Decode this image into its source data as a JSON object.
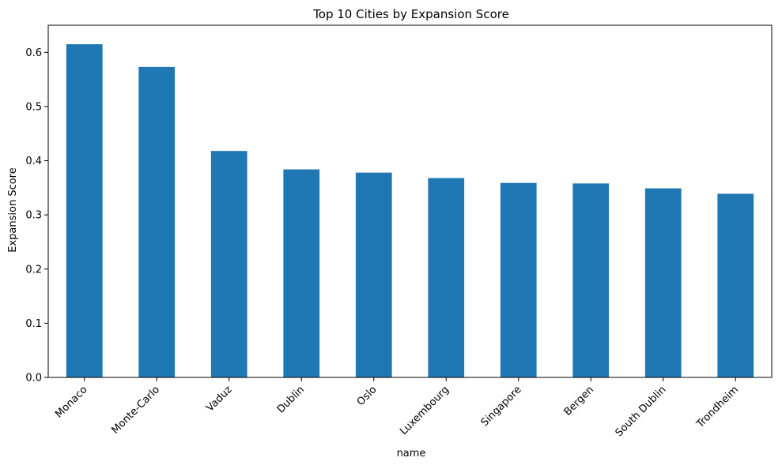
{
  "chart_data": {
    "type": "bar",
    "title": "Top 10 Cities by Expansion Score",
    "xlabel": "name",
    "ylabel": "Expansion Score",
    "categories": [
      "Monaco",
      "Monte-Carlo",
      "Vaduz",
      "Dublin",
      "Oslo",
      "Luxembourg",
      "Singapore",
      "Bergen",
      "South Dublin",
      "Trondheim"
    ],
    "values": [
      0.615,
      0.573,
      0.418,
      0.384,
      0.378,
      0.368,
      0.359,
      0.358,
      0.349,
      0.339
    ],
    "ylim": [
      0,
      0.65
    ],
    "yticks": [
      0.0,
      0.1,
      0.2,
      0.3,
      0.4,
      0.5,
      0.6
    ],
    "ytick_labels": [
      "0.0",
      "0.1",
      "0.2",
      "0.3",
      "0.4",
      "0.5",
      "0.6"
    ],
    "grid": false,
    "legend": "none",
    "bar_color": "#1f77b4",
    "axis_color": "#000000",
    "background": "#ffffff"
  }
}
